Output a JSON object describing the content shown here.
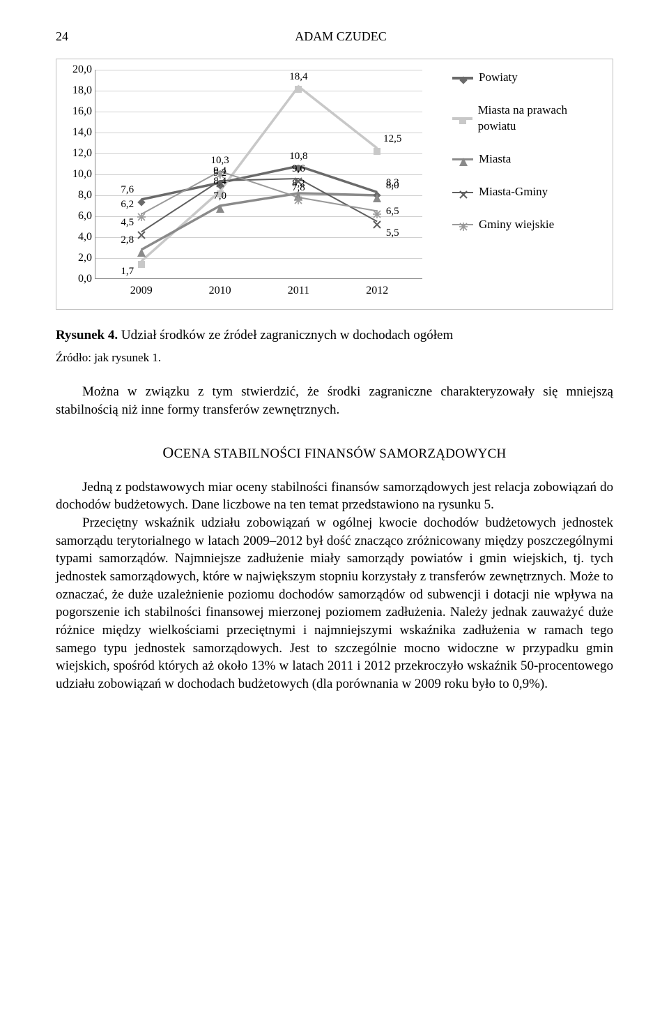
{
  "page": {
    "number": "24",
    "author": "ADAM CZUDEC"
  },
  "chart": {
    "type": "line",
    "x_categories": [
      "2009",
      "2010",
      "2011",
      "2012"
    ],
    "y_ticks": [
      "0,0",
      "2,0",
      "4,0",
      "6,0",
      "8,0",
      "10,0",
      "12,0",
      "14,0",
      "16,0",
      "18,0",
      "20,0"
    ],
    "ylim_max": 20.0,
    "series": [
      {
        "key": "powiaty",
        "label": "Powiaty",
        "color": "#6a6a6a",
        "width": 3.5,
        "marker": "diamond",
        "values": [
          7.6,
          9.2,
          10.8,
          8.3
        ],
        "value_labels": [
          "7,6",
          "9,2",
          "10,8",
          "8,3"
        ]
      },
      {
        "key": "miasta_prawa",
        "label": "Miasta na prawach powiatu",
        "color": "#c8c8c8",
        "width": 3.5,
        "marker": "square",
        "values": [
          1.7,
          8.4,
          18.4,
          12.5
        ],
        "value_labels": [
          "1,7",
          "8,4",
          "18,4",
          "12,5"
        ]
      },
      {
        "key": "miasta",
        "label": "Miasta",
        "color": "#8a8a8a",
        "width": 3.5,
        "marker": "triangle",
        "values": [
          2.8,
          7.0,
          8.2,
          8.0
        ],
        "value_labels": [
          "2,8",
          "7,0",
          "8,2",
          "8,0"
        ]
      },
      {
        "key": "miasta_gminy",
        "label": "Miasta-Gminy",
        "color": "#5f5f5f",
        "width": 2,
        "marker": "x",
        "values": [
          4.5,
          9.4,
          9.6,
          5.5
        ],
        "value_labels": [
          "4,5",
          "9,4",
          "9,6",
          "5,5"
        ]
      },
      {
        "key": "gminy_wiejskie",
        "label": "Gminy wiejskie",
        "color": "#9a9a9a",
        "width": 2,
        "marker": "star",
        "values": [
          6.2,
          10.3,
          7.8,
          6.5
        ],
        "value_labels": [
          "6,2",
          "10,3",
          "7,8",
          "6,5"
        ]
      }
    ]
  },
  "caption": {
    "prefix": "Rysunek 4.",
    "text": " Udział środków ze źródeł zagranicznych w dochodach ogółem"
  },
  "source": "Źródło: jak rysunek 1.",
  "para1": "Można w związku z tym stwierdzić, że środki zagraniczne charakteryzowały się mniejszą stabilnością niż inne formy transferów zewnętrznych.",
  "section_head": "OCENA STABILNOŚCI FINANSÓW SAMORZĄDOWYCH",
  "para2": "Jedną z podstawowych miar oceny stabilności finansów samorządowych jest relacja zobowiązań do dochodów budżetowych. Dane liczbowe na ten temat przedstawiono na rysunku 5.",
  "para3": "Przeciętny wskaźnik udziału zobowiązań w ogólnej kwocie dochodów budżetowych jednostek samorządu terytorialnego w latach 2009–2012 był dość znacząco zróżnicowany między poszczególnymi typami samorządów. Najmniejsze zadłużenie miały samorządy powiatów i gmin wiejskich, tj. tych jednostek samorządowych, które w największym stopniu korzystały z transferów zewnętrznych. Może to oznaczać, że duże uzależnienie poziomu dochodów samorządów od subwencji i dotacji nie wpływa na pogorszenie ich stabilności finansowej mierzonej poziomem zadłużenia. Należy jednak zauważyć duże różnice między wielkościami przeciętnymi i najmniejszymi wskaźnika zadłużenia w ramach tego samego typu jednostek samorządowych. Jest to szczególnie mocno widoczne w przypadku gmin wiejskich, spośród których aż około 13% w latach 2011 i 2012 przekroczyło wskaźnik 50-procentowego udziału zobowiązań w dochodach budżetowych (dla porównania w 2009 roku było to 0,9%)."
}
